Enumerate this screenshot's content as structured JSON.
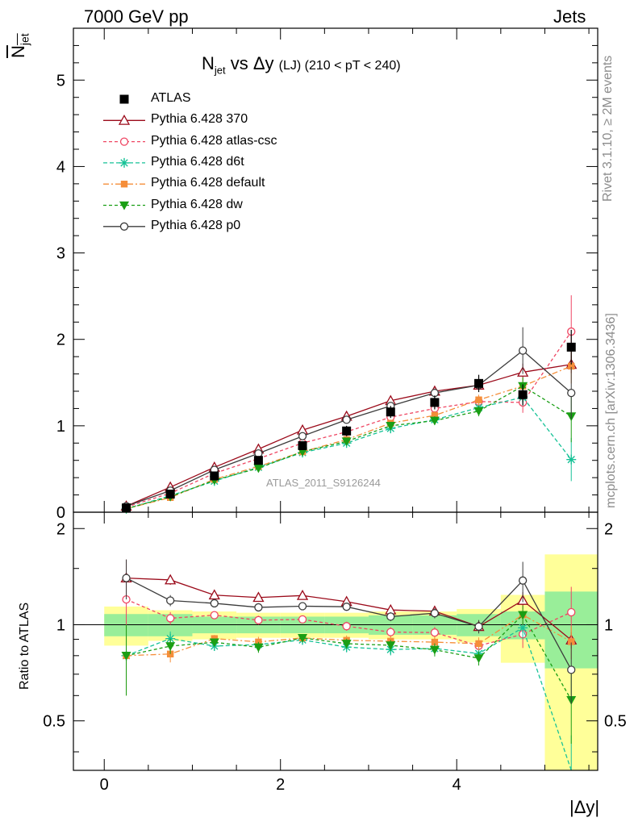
{
  "header": {
    "left": "7000 GeV pp",
    "right": "Jets"
  },
  "side_labels": {
    "rivet": "Rivet 3.1.10, ≥ 2M events",
    "mcplots": "mcplots.cern.ch [arXiv:1306.3436]"
  },
  "watermark": "ATLAS_2011_S9126244",
  "chart_data": {
    "type": "line",
    "title": {
      "main": "N",
      "main_sub": "jet",
      "middle": " vs Δy ",
      "small": "(LJ) (210 < pT < 240)"
    },
    "ylabel": {
      "top": "N",
      "sub": "jet"
    },
    "xlabel": "|Δy|",
    "ratio_ylabel": "Ratio to ATLAS",
    "xlim": [
      -0.35,
      5.6
    ],
    "ylim": [
      0,
      5.6
    ],
    "ratio_ylim": [
      0.35,
      2.25
    ],
    "x_ticks": [
      0,
      2,
      4
    ],
    "y_ticks": [
      0,
      1,
      2,
      3,
      4,
      5
    ],
    "ratio_ticks": [
      0.5,
      1,
      2
    ],
    "x": [
      0.25,
      0.75,
      1.25,
      1.75,
      2.25,
      2.75,
      3.25,
      3.75,
      4.25,
      4.75,
      5.3
    ],
    "bin_edges": [
      0,
      0.5,
      1,
      1.5,
      2,
      2.5,
      3,
      3.5,
      4,
      4.5,
      5,
      5.6
    ],
    "data": {
      "name": "ATLAS",
      "values": [
        0.05,
        0.21,
        0.42,
        0.6,
        0.77,
        0.94,
        1.16,
        1.27,
        1.49,
        1.36,
        1.91
      ],
      "errors": [
        0.01,
        0.02,
        0.03,
        0.04,
        0.05,
        0.06,
        0.07,
        0.08,
        0.1,
        0.12,
        0.2
      ]
    },
    "ratio_bands": {
      "stat_green_half": [
        0.08,
        0.08,
        0.06,
        0.06,
        0.06,
        0.06,
        0.07,
        0.07,
        0.08,
        0.1,
        0.27
      ],
      "total_yellow_half": [
        0.14,
        0.11,
        0.1,
        0.09,
        0.09,
        0.09,
        0.1,
        0.1,
        0.12,
        0.24,
        0.66
      ]
    },
    "series": [
      {
        "name": "Pythia 6.428 370",
        "color": "#9b0a1a",
        "dash": "",
        "marker": "triangle-open",
        "values": [
          0.07,
          0.29,
          0.52,
          0.73,
          0.95,
          1.11,
          1.29,
          1.4,
          1.47,
          1.62,
          1.71
        ],
        "errors": [
          0.01,
          0.01,
          0.01,
          0.02,
          0.02,
          0.03,
          0.03,
          0.05,
          0.07,
          0.1,
          0.1
        ]
      },
      {
        "name": "Pythia 6.428 atlas-csc",
        "color": "#ef4663",
        "dash": "4,3",
        "marker": "circle-open",
        "values": [
          0.06,
          0.22,
          0.45,
          0.62,
          0.8,
          0.93,
          1.1,
          1.2,
          1.28,
          1.27,
          2.09
        ],
        "errors": [
          0.01,
          0.01,
          0.01,
          0.02,
          0.02,
          0.03,
          0.04,
          0.05,
          0.07,
          0.12,
          0.42
        ]
      },
      {
        "name": "Pythia 6.428 d6t",
        "color": "#17c297",
        "dash": "5,3",
        "marker": "star",
        "values": [
          0.04,
          0.19,
          0.36,
          0.52,
          0.69,
          0.8,
          0.97,
          1.07,
          1.21,
          1.33,
          0.61
        ],
        "errors": [
          0.01,
          0.01,
          0.01,
          0.02,
          0.02,
          0.03,
          0.04,
          0.05,
          0.06,
          0.1,
          0.25
        ]
      },
      {
        "name": "Pythia 6.428 default",
        "color": "#f58e3a",
        "dash": "7,3,2,3",
        "marker": "square-filled",
        "values": [
          0.04,
          0.17,
          0.38,
          0.53,
          0.7,
          0.84,
          1.03,
          1.12,
          1.3,
          1.46,
          1.69
        ],
        "errors": [
          0.01,
          0.01,
          0.01,
          0.02,
          0.02,
          0.03,
          0.04,
          0.05,
          0.06,
          0.1,
          0.2
        ]
      },
      {
        "name": "Pythia 6.428 dw",
        "color": "#1a9e14",
        "dash": "4,3",
        "marker": "triangle-down-filled",
        "values": [
          0.04,
          0.18,
          0.37,
          0.51,
          0.7,
          0.82,
          1.0,
          1.06,
          1.17,
          1.46,
          1.11
        ],
        "errors": [
          0.01,
          0.01,
          0.01,
          0.02,
          0.02,
          0.03,
          0.04,
          0.05,
          0.06,
          0.1,
          0.3
        ]
      },
      {
        "name": "Pythia 6.428 p0",
        "color": "#3c3c3c",
        "dash": "",
        "marker": "circle-open",
        "values": [
          0.07,
          0.25,
          0.49,
          0.68,
          0.88,
          1.07,
          1.23,
          1.38,
          1.47,
          1.87,
          1.38
        ],
        "errors": [
          0.01,
          0.01,
          0.01,
          0.02,
          0.02,
          0.03,
          0.04,
          0.05,
          0.07,
          0.27,
          0.3
        ]
      }
    ]
  }
}
